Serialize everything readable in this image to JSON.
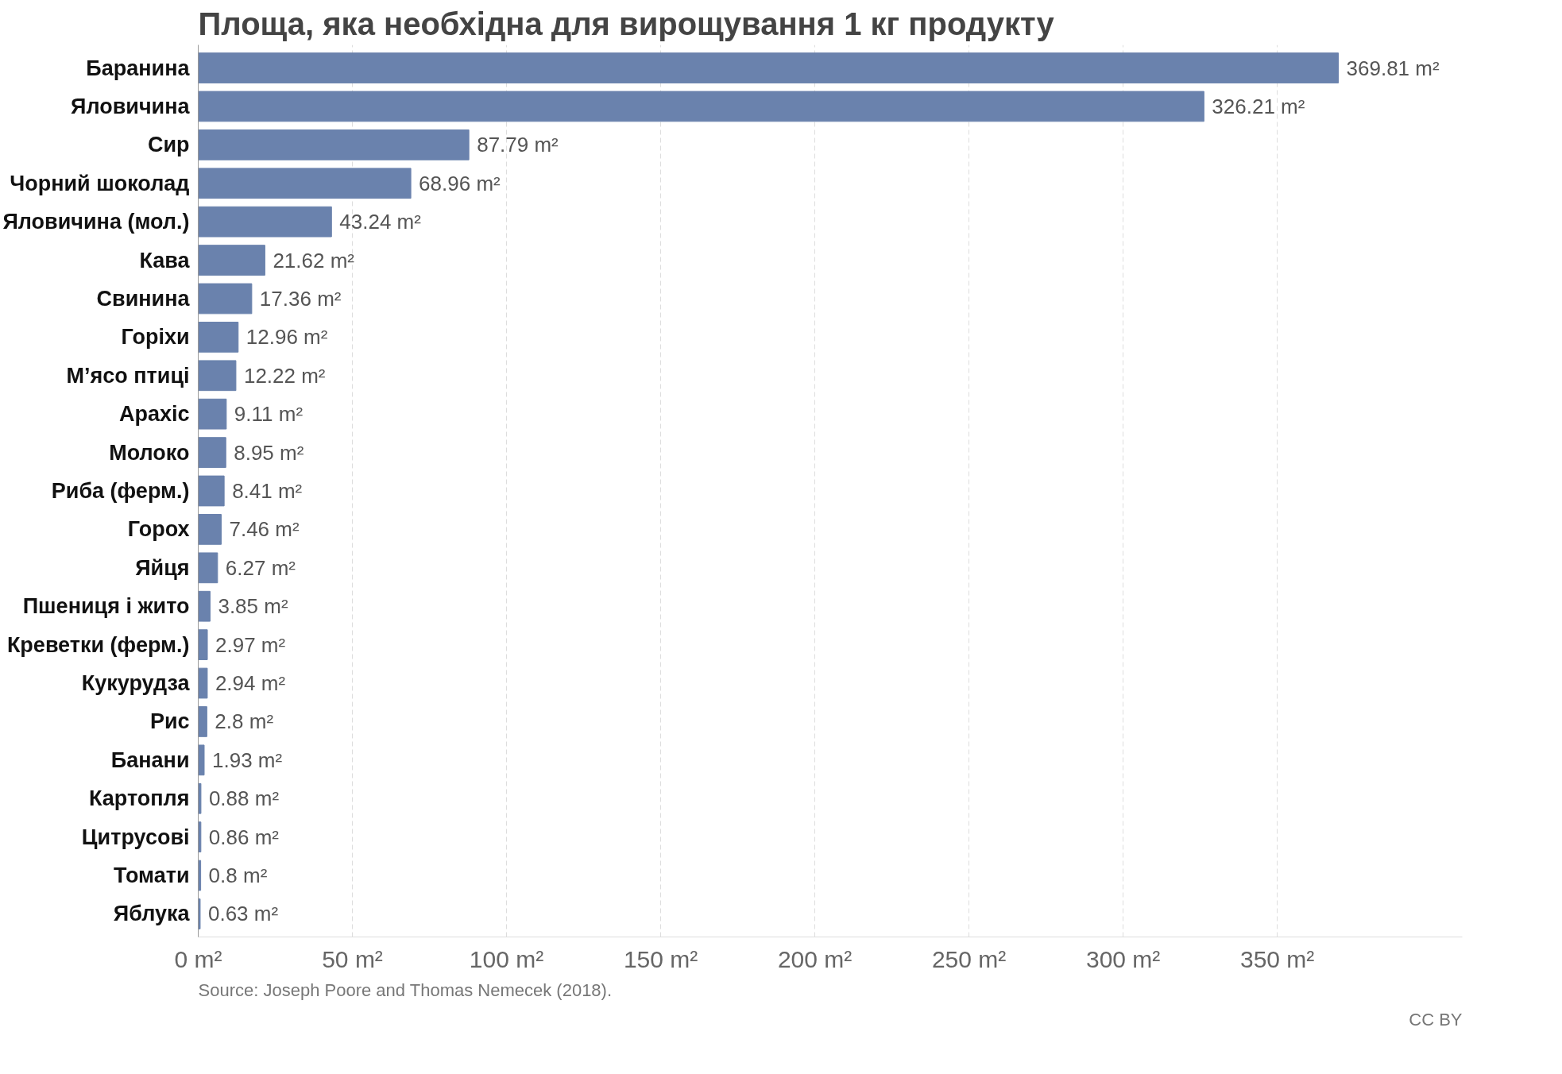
{
  "chart_data": {
    "type": "bar",
    "orientation": "horizontal",
    "title": "Площа, яка необхідна для вирощування 1 кг продукту",
    "categories": [
      "Баранина",
      "Яловичина",
      "Сир",
      "Чорний шоколад",
      "Яловичина (мол.)",
      "Кава",
      "Свинина",
      "Горіхи",
      "М’ясо птиці",
      "Арахіс",
      "Молоко",
      "Риба (ферм.)",
      "Горох",
      "Яйця",
      "Пшениця і жито",
      "Креветки (ферм.)",
      "Кукурудза",
      "Рис",
      "Банани",
      "Картопля",
      "Цитрусові",
      "Томати",
      "Яблука"
    ],
    "values": [
      369.81,
      326.21,
      87.79,
      68.96,
      43.24,
      21.62,
      17.36,
      12.96,
      12.22,
      9.11,
      8.95,
      8.41,
      7.46,
      6.27,
      3.85,
      2.97,
      2.94,
      2.8,
      1.93,
      0.88,
      0.86,
      0.8,
      0.63
    ],
    "value_labels": [
      "369.81 m²",
      "326.21 m²",
      "87.79 m²",
      "68.96 m²",
      "43.24 m²",
      "21.62 m²",
      "17.36 m²",
      "12.96 m²",
      "12.22 m²",
      "9.11 m²",
      "8.95 m²",
      "8.41 m²",
      "7.46 m²",
      "6.27 m²",
      "3.85 m²",
      "2.97 m²",
      "2.94 m²",
      "2.8 m²",
      "1.93 m²",
      "0.88 m²",
      "0.86 m²",
      "0.8 m²",
      "0.63 m²"
    ],
    "color": "#6a82ad",
    "xlim": [
      0,
      410
    ],
    "xticks": [
      {
        "value": 0,
        "label": "0 m²"
      },
      {
        "value": 50,
        "label": "50 m²"
      },
      {
        "value": 100,
        "label": "100 m²"
      },
      {
        "value": 150,
        "label": "150 m²"
      },
      {
        "value": 200,
        "label": "200 m²"
      },
      {
        "value": 250,
        "label": "250 m²"
      },
      {
        "value": 300,
        "label": "300 m²"
      },
      {
        "value": 350,
        "label": "350 m²"
      }
    ],
    "grid": "x",
    "annotations": [
      "Source: Joseph Poore and Thomas Nemecek (2018).",
      "CC BY"
    ]
  }
}
